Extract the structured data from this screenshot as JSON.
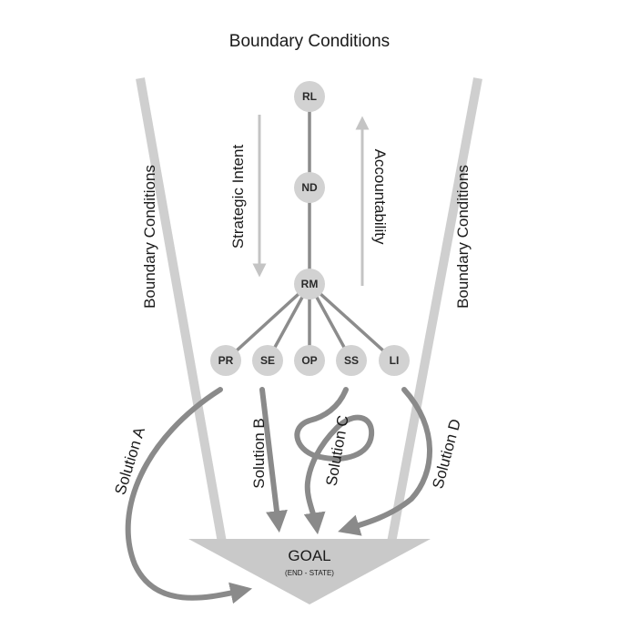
{
  "title": "Boundary Conditions",
  "left_boundary_label": "Boundary Conditions",
  "right_boundary_label": "Boundary Conditions",
  "downward_arrow_label": "Strategic Intent",
  "upward_arrow_label": "Accountability",
  "nodes": {
    "top": "RL",
    "middle": "ND",
    "hub": "RM",
    "branches": [
      "PR",
      "SE",
      "OP",
      "SS",
      "LI"
    ]
  },
  "solutions": [
    "Solution A",
    "Solution B",
    "Solution C",
    "Solution D"
  ],
  "goal": {
    "title": "GOAL",
    "subtitle": "(END - STATE)"
  },
  "colors": {
    "boundary": "#cfcfcf",
    "node_fill": "#d2d2d2",
    "connector": "#8c8c8c",
    "solution_path": "#8a8a8a",
    "goal_fill": "#c9c9c9"
  }
}
